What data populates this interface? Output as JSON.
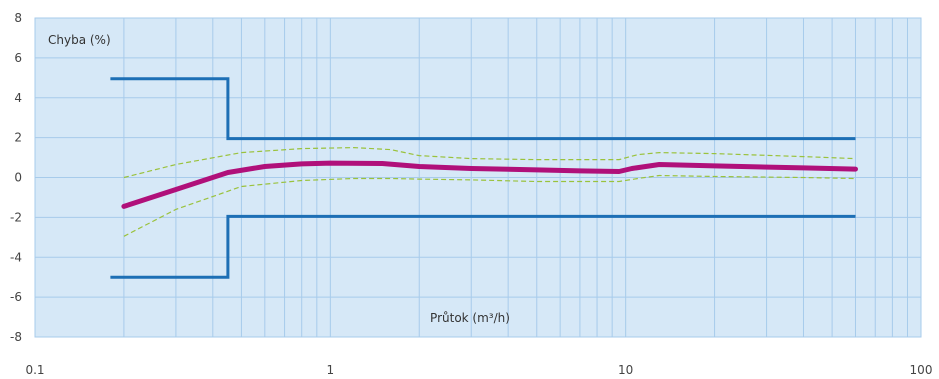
{
  "chart_data": {
    "type": "line",
    "x_scale": "log",
    "xlim": [
      0.1,
      100
    ],
    "ylim": [
      -8,
      8
    ],
    "x_ticks": [
      "0.1",
      "1",
      "10",
      "100"
    ],
    "y_ticks": [
      "8",
      "6",
      "4",
      "2",
      "0",
      "-2",
      "-4",
      "-6",
      "-8"
    ],
    "ylabel": "Chyba (%)",
    "xlabel": "Průtok (m³/h)",
    "grid": true,
    "colors": {
      "plot_background": "#d6e8f7",
      "grid": "#a7cbeb",
      "limits": "#1d6fb5",
      "error_curve": "#b0107a",
      "band": "#9ac23c"
    },
    "series": [
      {
        "style": "limit",
        "x": [
          0.18,
          0.45,
          0.45,
          60
        ],
        "y": [
          4.95,
          4.95,
          1.95,
          1.95
        ]
      },
      {
        "style": "limit",
        "x": [
          0.18,
          0.45,
          0.45,
          60
        ],
        "y": [
          -5.0,
          -5.0,
          -1.95,
          -1.95
        ]
      },
      {
        "style": "main",
        "x": [
          0.2,
          0.3,
          0.45,
          0.6,
          0.8,
          1.0,
          1.5,
          2.0,
          3.0,
          5.0,
          7.0,
          9.5,
          10.5,
          13.0,
          20.0,
          40.0,
          60.0
        ],
        "y": [
          -1.45,
          -0.6,
          0.25,
          0.55,
          0.68,
          0.72,
          0.7,
          0.55,
          0.45,
          0.38,
          0.33,
          0.3,
          0.45,
          0.65,
          0.58,
          0.48,
          0.42
        ]
      },
      {
        "style": "band",
        "x": [
          0.2,
          0.3,
          0.5,
          0.8,
          1.2,
          1.6,
          2.0,
          3.0,
          5.0,
          9.5,
          11.0,
          13.0,
          20.0,
          40.0,
          60.0
        ],
        "y": [
          0.0,
          0.65,
          1.25,
          1.45,
          1.5,
          1.4,
          1.1,
          0.95,
          0.9,
          0.9,
          1.15,
          1.25,
          1.2,
          1.05,
          0.95
        ]
      },
      {
        "style": "band",
        "x": [
          0.2,
          0.3,
          0.5,
          0.8,
          1.2,
          1.6,
          2.0,
          3.0,
          5.0,
          9.5,
          11.0,
          13.0,
          20.0,
          40.0,
          60.0
        ],
        "y": [
          -2.95,
          -1.6,
          -0.45,
          -0.15,
          -0.05,
          -0.05,
          -0.08,
          -0.12,
          -0.2,
          -0.2,
          -0.05,
          0.1,
          0.05,
          0.0,
          -0.05
        ]
      }
    ]
  }
}
